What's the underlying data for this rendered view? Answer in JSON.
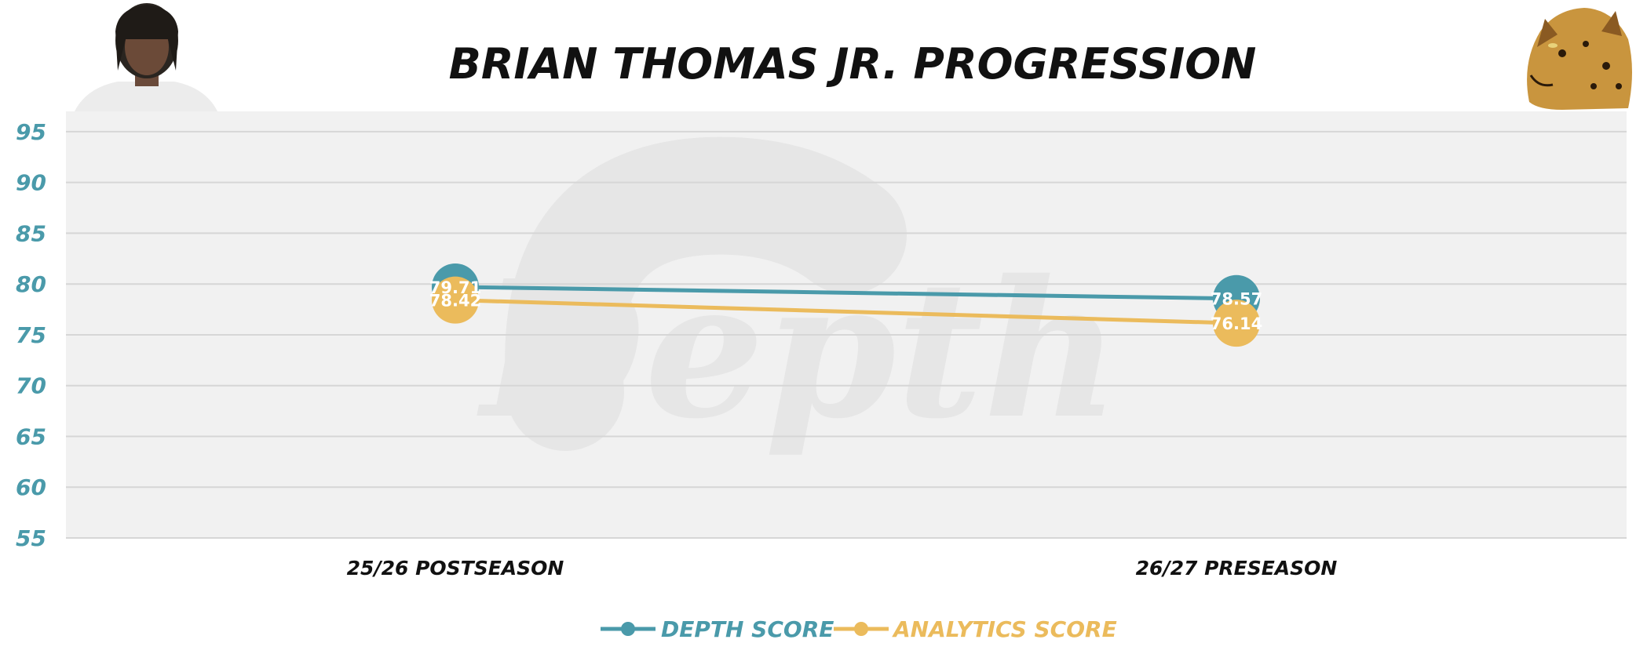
{
  "colors": {
    "depth": "#4a9aaa",
    "analytics": "#ebbb5c",
    "plot_bg": "#f1f1f1",
    "grid": "#d6d6d6",
    "watermark": "#e6e6e6"
  },
  "header": {
    "player_photo_icon": "player-headshot",
    "team_logo_icon": "jaguar-logo"
  },
  "watermark_text": "Depth",
  "chart_data": {
    "type": "line",
    "title": "BRIAN THOMAS JR. PROGRESSION",
    "categories": [
      "25/26 POSTSEASON",
      "26/27 PRESEASON"
    ],
    "series": [
      {
        "name": "DEPTH SCORE",
        "values": [
          79.71,
          78.57
        ],
        "labels": [
          "79.71",
          "78.57"
        ],
        "color": "#4a9aaa"
      },
      {
        "name": "ANALYTICS SCORE",
        "values": [
          78.42,
          76.14
        ],
        "labels": [
          "78.42",
          "76.14"
        ],
        "color": "#ebbb5c"
      }
    ],
    "ylim": [
      55,
      97
    ],
    "yticks": [
      "55",
      "60",
      "65",
      "70",
      "75",
      "80",
      "85",
      "90",
      "95"
    ],
    "xlabel": "",
    "ylabel": "",
    "grid": true,
    "legend": "bottom-center"
  }
}
